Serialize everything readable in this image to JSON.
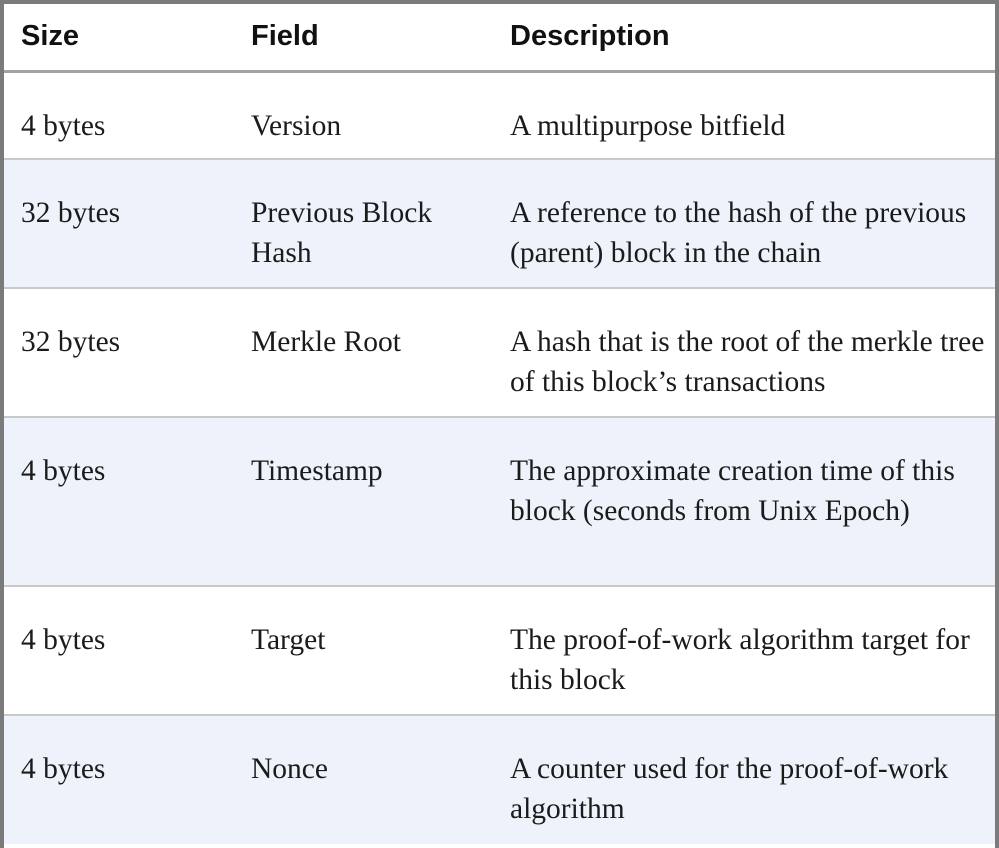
{
  "table": {
    "headers": {
      "size": "Size",
      "field": "Field",
      "description": "Description"
    },
    "rows": [
      {
        "size": "4 bytes",
        "field": "Version",
        "description": "A multipurpose bitfield"
      },
      {
        "size": "32 bytes",
        "field": "Previous Block Hash",
        "description": "A reference to the hash of the previous (parent) block in the chain"
      },
      {
        "size": "32 bytes",
        "field": "Merkle Root",
        "description": "A hash that is the root of the merkle tree of this block’s transactions"
      },
      {
        "size": "4 bytes",
        "field": "Timestamp",
        "description": "The approximate creation time of this block (seconds from Unix Epoch)"
      },
      {
        "size": "4 bytes",
        "field": "Target",
        "description": "The proof-of-work algorithm target for this block"
      },
      {
        "size": "4 bytes",
        "field": "Nonce",
        "description": "A counter used for the proof-of-work algorithm"
      }
    ]
  },
  "colors": {
    "border": "#7b7b7b",
    "header_rule": "#a3a3a3",
    "row_rule": "#c9c9c9",
    "stripe": "#eef3fb"
  }
}
